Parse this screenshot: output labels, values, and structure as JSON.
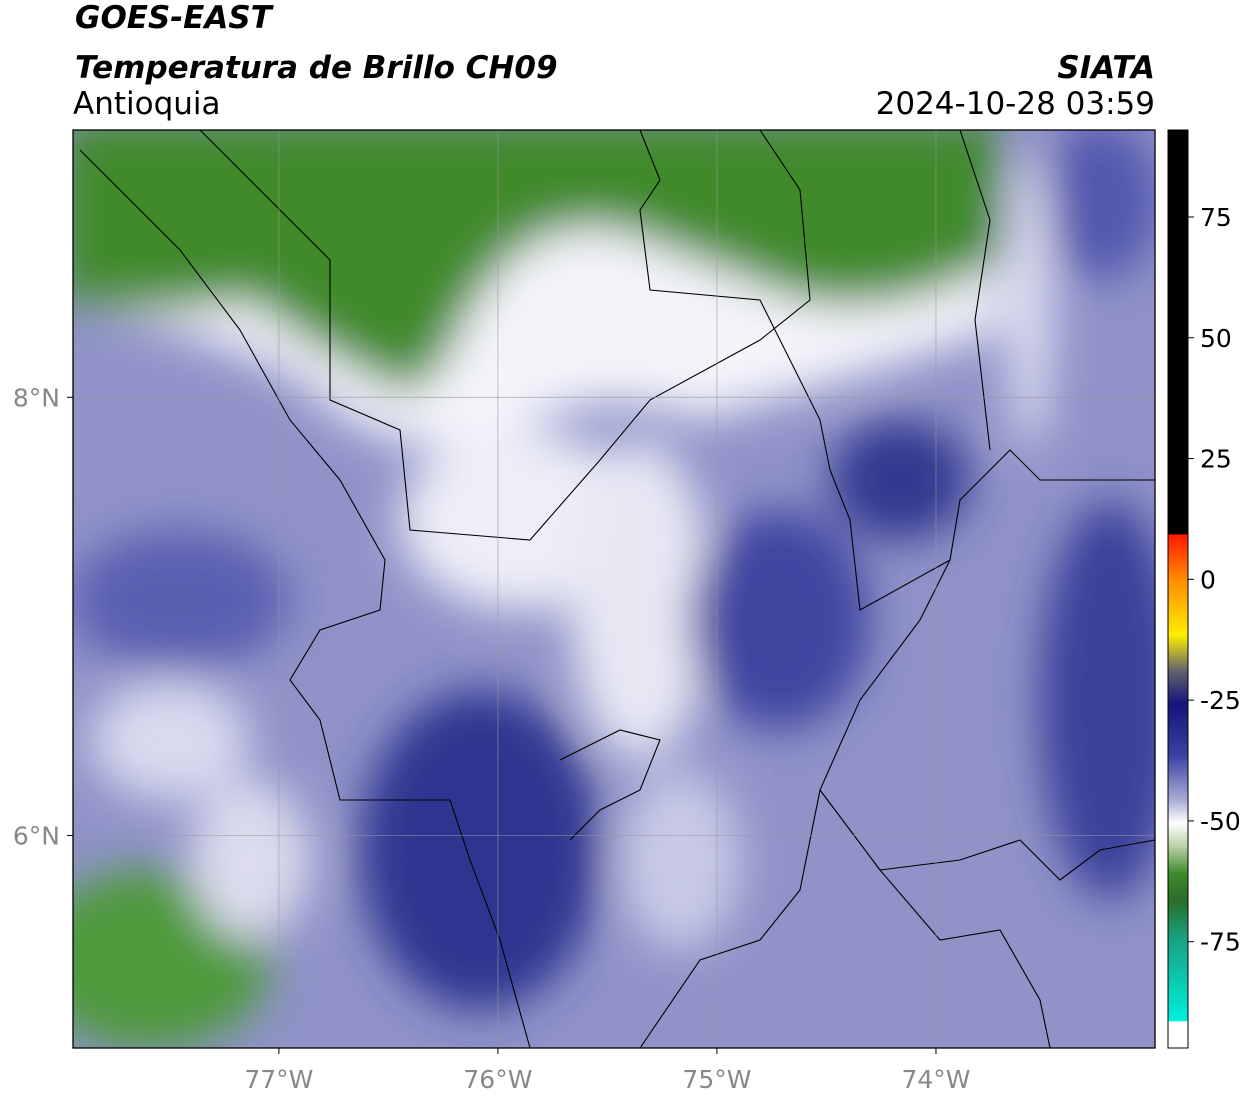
{
  "header": {
    "title": "GOES-EAST",
    "subtitle": "Temperatura de Brillo CH09",
    "region": "Antioquia",
    "source": "SIATA",
    "datetime": "2024-10-28 03:59"
  },
  "map": {
    "xlim": [
      -77.94,
      -73.0
    ],
    "ylim": [
      5.03,
      9.22
    ],
    "xticks": [
      {
        "value": -77,
        "label": "77°W"
      },
      {
        "value": -76,
        "label": "76°W"
      },
      {
        "value": -75,
        "label": "75°W"
      },
      {
        "value": -74,
        "label": "74°W"
      }
    ],
    "yticks": [
      {
        "value": 8,
        "label": "8°N"
      },
      {
        "value": 6,
        "label": "6°N"
      }
    ],
    "grid": true
  },
  "colorbar": {
    "lim": [
      -97,
      93
    ],
    "ticks": [
      75,
      50,
      25,
      0,
      -25,
      -50,
      -75
    ]
  }
}
